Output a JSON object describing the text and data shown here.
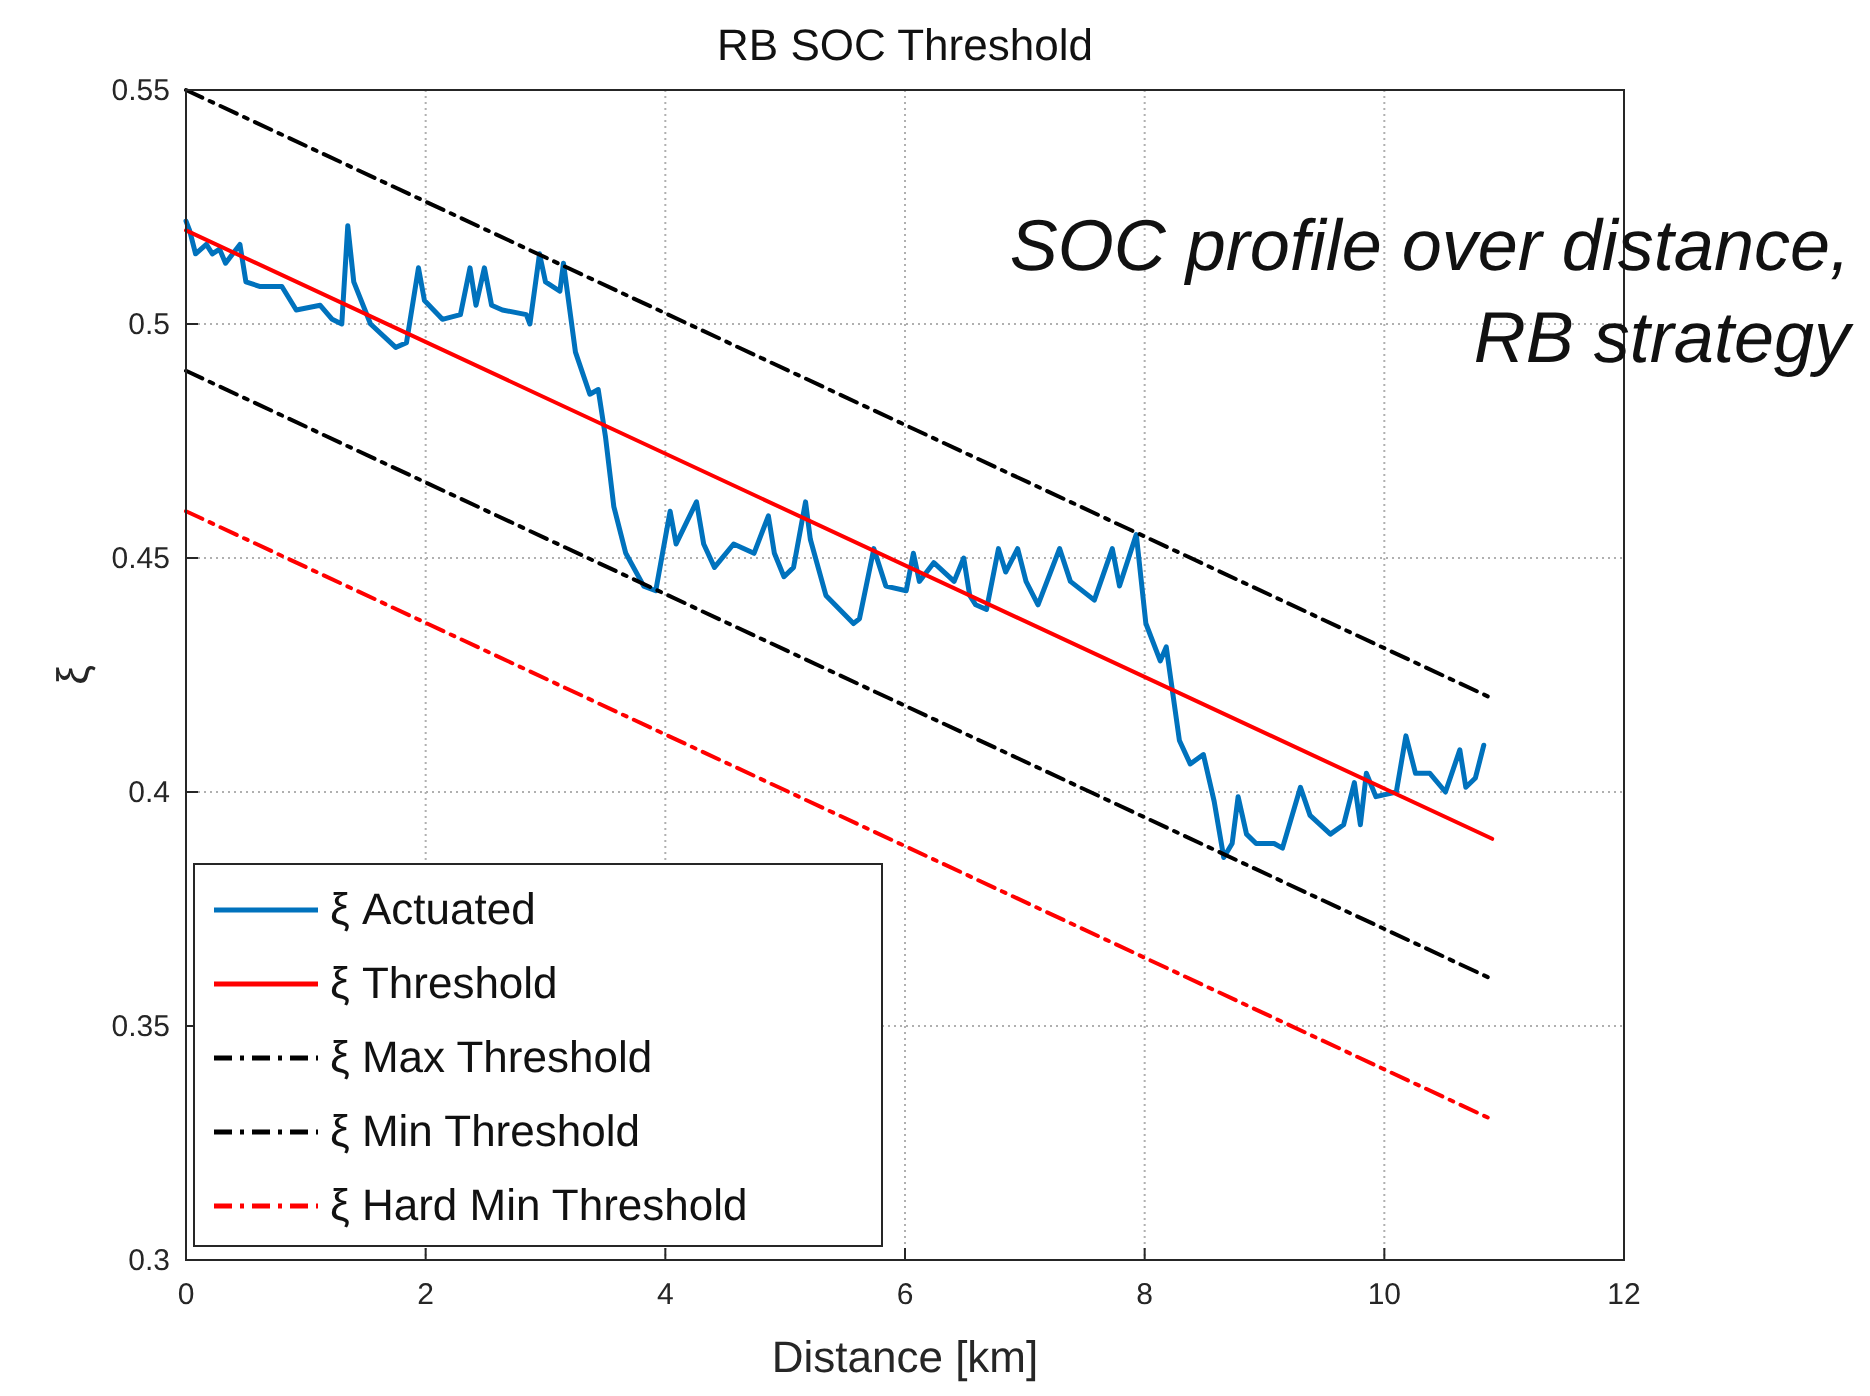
{
  "chart_data": {
    "type": "line",
    "title": "RB SOC Threshold",
    "xlabel": "Distance [km]",
    "ylabel": "ξ",
    "annotations": [
      "SOC profile over distance,\nRB strategy"
    ],
    "xlim": [
      0,
      12
    ],
    "xticks": [
      0,
      2,
      4,
      6,
      8,
      10,
      12
    ],
    "ylim": [
      0.3,
      0.55
    ],
    "yticks": [
      0.3,
      0.35,
      0.4,
      0.45,
      0.5,
      0.55
    ],
    "grid": true,
    "legend": "bottom left",
    "marker": "none",
    "series": [
      {
        "name": "ξ Actuated",
        "color": "#0072bd",
        "line_style": "solid",
        "x": [
          0,
          0.03,
          0.08,
          0.17,
          0.22,
          0.28,
          0.33,
          0.45,
          0.5,
          0.62,
          0.8,
          0.92,
          1.12,
          1.22,
          1.3,
          1.35,
          1.4,
          1.54,
          1.75,
          1.84,
          1.94,
          1.99,
          2.14,
          2.29,
          2.37,
          2.42,
          2.49,
          2.55,
          2.64,
          2.84,
          2.87,
          2.95,
          3.0,
          3.12,
          3.15,
          3.25,
          3.37,
          3.44,
          3.5,
          3.57,
          3.67,
          3.82,
          3.92,
          4.04,
          4.09,
          4.26,
          4.32,
          4.41,
          4.57,
          4.74,
          4.86,
          4.91,
          4.99,
          5.07,
          5.17,
          5.21,
          5.34,
          5.57,
          5.62,
          5.74,
          5.84,
          6.01,
          6.07,
          6.12,
          6.24,
          6.41,
          6.49,
          6.54,
          6.59,
          6.68,
          6.78,
          6.84,
          6.94,
          7.01,
          7.11,
          7.29,
          7.38,
          7.58,
          7.73,
          7.79,
          7.93,
          8.01,
          8.13,
          8.18,
          8.29,
          8.38,
          8.49,
          8.58,
          8.66,
          8.73,
          8.78,
          8.85,
          8.93,
          9.08,
          9.15,
          9.3,
          9.38,
          9.55,
          9.66,
          9.75,
          9.8,
          9.85,
          9.93,
          10.1,
          10.18,
          10.26,
          10.38,
          10.51,
          10.63,
          10.68,
          10.76,
          10.83
        ],
        "values": [
          0.522,
          0.52,
          0.515,
          0.517,
          0.515,
          0.516,
          0.513,
          0.517,
          0.509,
          0.508,
          0.508,
          0.503,
          0.504,
          0.501,
          0.5,
          0.521,
          0.509,
          0.5,
          0.495,
          0.496,
          0.512,
          0.505,
          0.501,
          0.502,
          0.512,
          0.504,
          0.512,
          0.504,
          0.503,
          0.502,
          0.5,
          0.515,
          0.509,
          0.507,
          0.513,
          0.494,
          0.485,
          0.486,
          0.476,
          0.461,
          0.451,
          0.444,
          0.443,
          0.46,
          0.453,
          0.462,
          0.453,
          0.448,
          0.453,
          0.451,
          0.459,
          0.451,
          0.446,
          0.448,
          0.462,
          0.454,
          0.442,
          0.436,
          0.437,
          0.452,
          0.444,
          0.443,
          0.451,
          0.445,
          0.449,
          0.445,
          0.45,
          0.442,
          0.44,
          0.439,
          0.452,
          0.447,
          0.452,
          0.445,
          0.44,
          0.452,
          0.445,
          0.441,
          0.452,
          0.444,
          0.455,
          0.436,
          0.428,
          0.431,
          0.411,
          0.406,
          0.408,
          0.398,
          0.386,
          0.389,
          0.399,
          0.391,
          0.389,
          0.389,
          0.388,
          0.401,
          0.395,
          0.391,
          0.393,
          0.402,
          0.393,
          0.404,
          0.399,
          0.4,
          0.412,
          0.404,
          0.404,
          0.4,
          0.409,
          0.401,
          0.403,
          0.41
        ]
      },
      {
        "name": "ξ Threshold",
        "color": "#ff0000",
        "line_style": "solid",
        "x": [
          0,
          10.9
        ],
        "values": [
          0.52,
          0.39
        ]
      },
      {
        "name": "ξ Max Threshold",
        "color": "#000000",
        "line_style": "dashed",
        "x": [
          0,
          10.9
        ],
        "values": [
          0.55,
          0.42
        ]
      },
      {
        "name": "ξ Min Threshold",
        "color": "#000000",
        "line_style": "dashed",
        "x": [
          0,
          10.9
        ],
        "values": [
          0.49,
          0.36
        ]
      },
      {
        "name": "ξ Hard Min Threshold",
        "color": "#ff0000",
        "line_style": "dashed",
        "x": [
          0,
          10.9
        ],
        "values": [
          0.46,
          0.33
        ]
      }
    ]
  }
}
